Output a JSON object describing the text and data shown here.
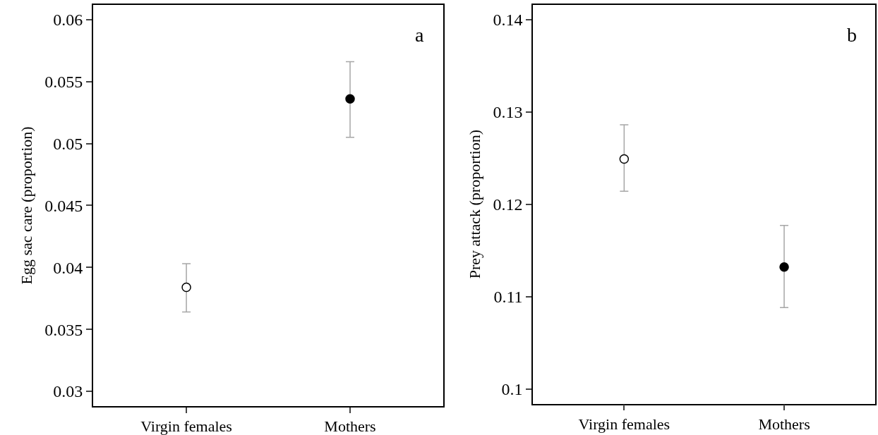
{
  "chart_data": [
    {
      "type": "scatter",
      "ylabel": "Egg sac care (proportion)",
      "annotations": [
        "a"
      ],
      "categories": [
        "Virgin females",
        "Mothers"
      ],
      "series": [
        {
          "values": [
            0.0384,
            0.0536
          ],
          "colors": [
            "#ffffff",
            "#000000"
          ],
          "errors": [
            [
              0.0364,
              0.0403
            ],
            [
              0.0505,
              0.0566
            ]
          ]
        }
      ],
      "ylim": [
        0.0288,
        0.0612
      ],
      "yticks": [
        0.03,
        0.035,
        0.04,
        0.045,
        0.05,
        0.055,
        0.06
      ],
      "marker": "circle"
    },
    {
      "type": "scatter",
      "ylabel": "Prey attack (proportion)",
      "annotations": [
        "b"
      ],
      "categories": [
        "Virgin females",
        "Mothers"
      ],
      "series": [
        {
          "values": [
            0.1249,
            0.1132
          ],
          "colors": [
            "#ffffff",
            "#000000"
          ],
          "errors": [
            [
              0.1214,
              0.1286
            ],
            [
              0.1088,
              0.1177
            ]
          ]
        }
      ],
      "ylim": [
        0.0984,
        0.1416
      ],
      "yticks": [
        0.1,
        0.11,
        0.12,
        0.13,
        0.14
      ],
      "marker": "circle"
    }
  ]
}
